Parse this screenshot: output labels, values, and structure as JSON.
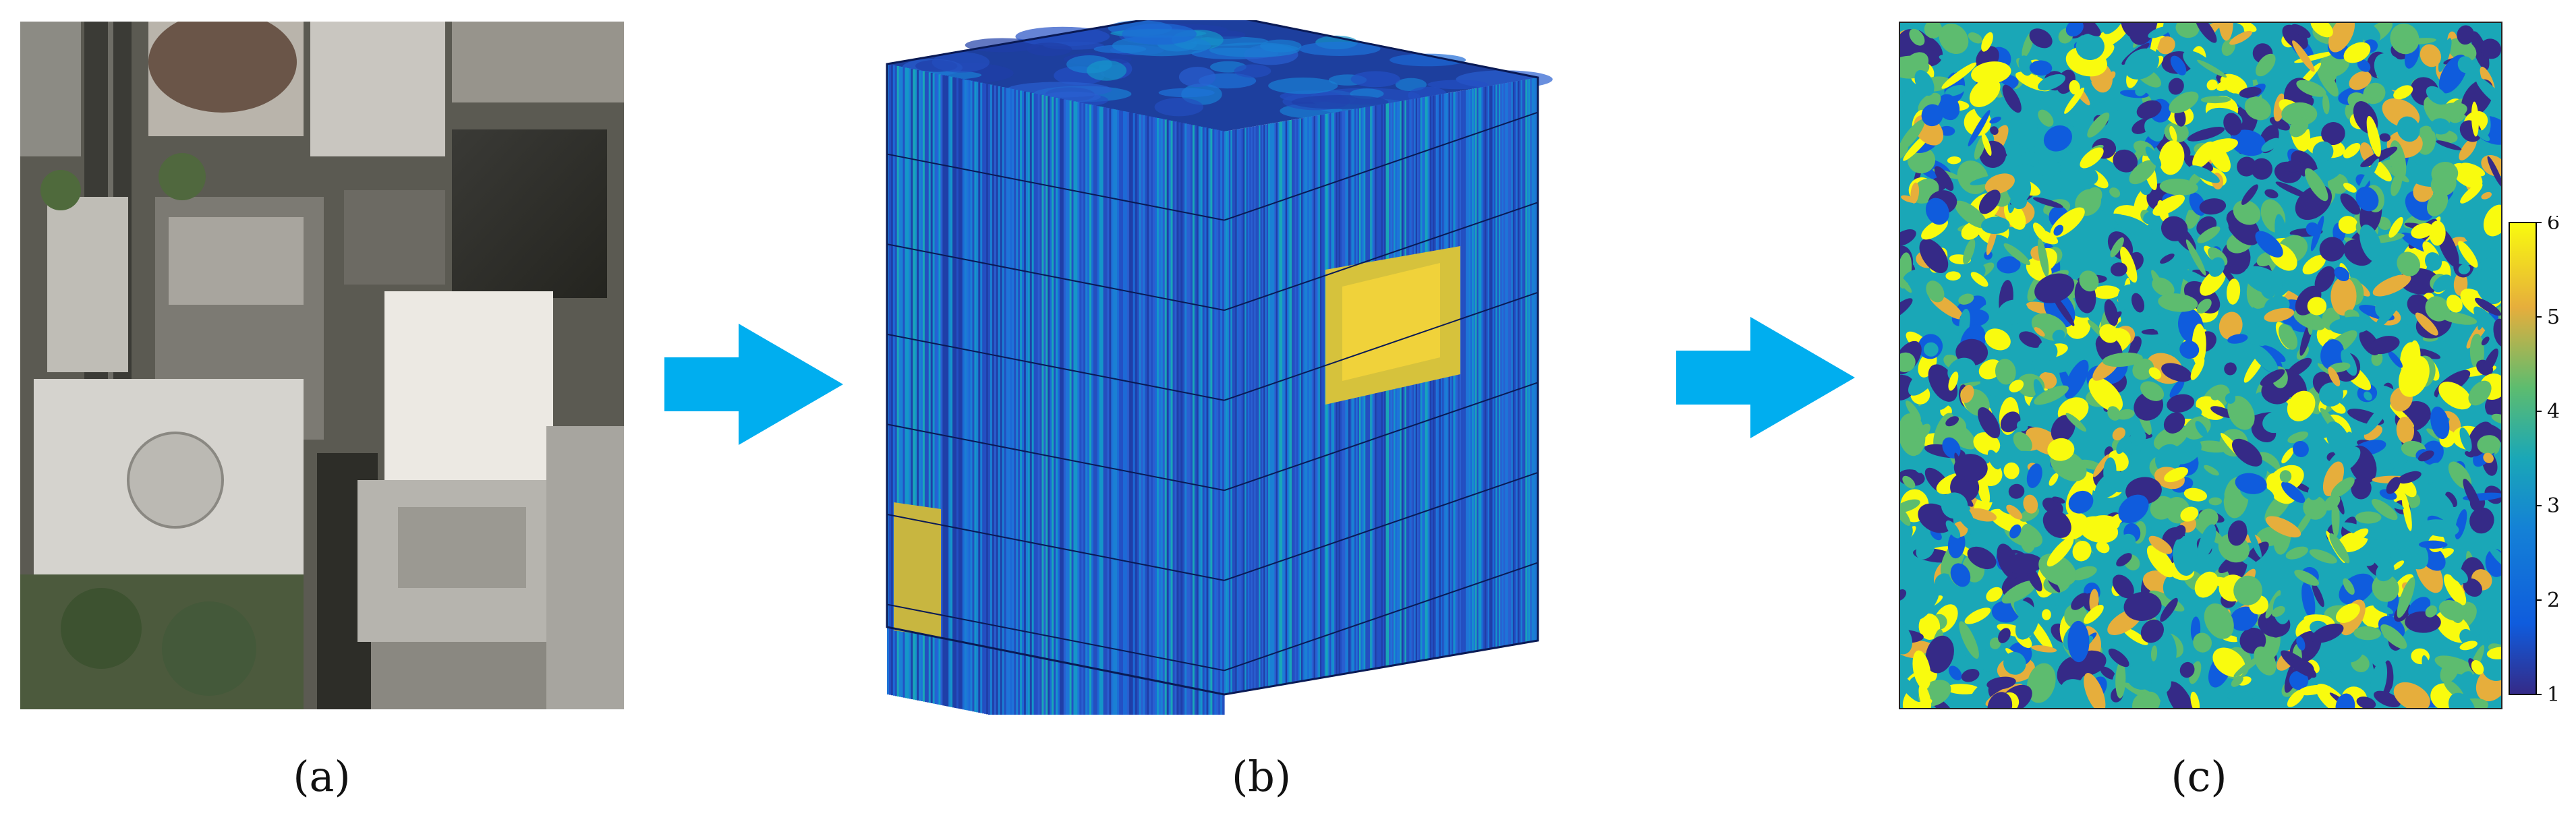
{
  "captions": {
    "a": "(a)",
    "b": "(b)",
    "c": "(c)"
  },
  "colors": {
    "arrow": "#00AEEF",
    "parula_dark": "#352A87",
    "parula_blue": "#0F5CDD",
    "parula_teal": "#1AA7B7",
    "parula_green": "#5DBC6F",
    "parula_orange": "#E6AE3C",
    "parula_yellow": "#F9FB0E"
  },
  "colorbar": {
    "ticks": [
      "1",
      "2",
      "3",
      "4",
      "5",
      "6"
    ]
  },
  "icons": {
    "arrow_1": "right-arrow-icon",
    "arrow_2": "right-arrow-icon"
  }
}
